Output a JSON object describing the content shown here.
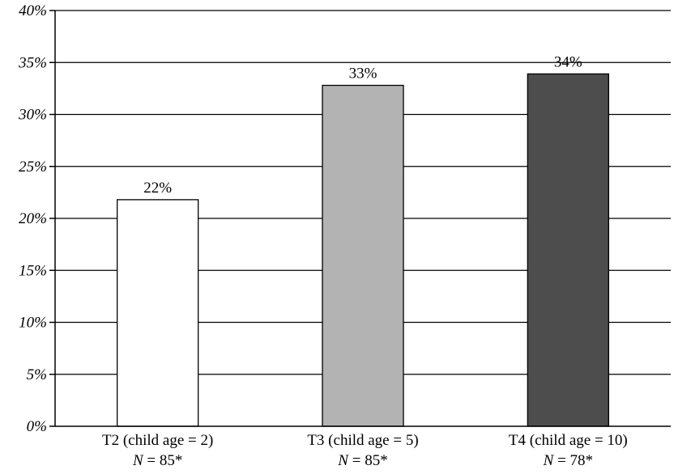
{
  "chart_data": {
    "type": "bar",
    "categories": [
      "T2 (child age = 2)",
      "T3 (child age = 5)",
      "T4 (child age = 10)"
    ],
    "n_labels": [
      {
        "prefix": "N",
        "text": " = 85*"
      },
      {
        "prefix": "N",
        "text": " = 85*"
      },
      {
        "prefix": "N",
        "text": " = 78*"
      }
    ],
    "values": [
      21.8,
      32.8,
      33.9
    ],
    "data_labels": [
      "22%",
      "33%",
      "34%"
    ],
    "bar_colors": [
      "#ffffff",
      "#b3b3b3",
      "#4d4d4d"
    ],
    "ylim": [
      0,
      40
    ],
    "yticks": [
      0,
      5,
      10,
      15,
      20,
      25,
      30,
      35,
      40
    ],
    "ytick_labels": [
      "0%",
      "5%",
      "10%",
      "15%",
      "20%",
      "25%",
      "30%",
      "35%",
      "40%"
    ],
    "grid": true,
    "title": "",
    "xlabel": "",
    "ylabel": ""
  }
}
